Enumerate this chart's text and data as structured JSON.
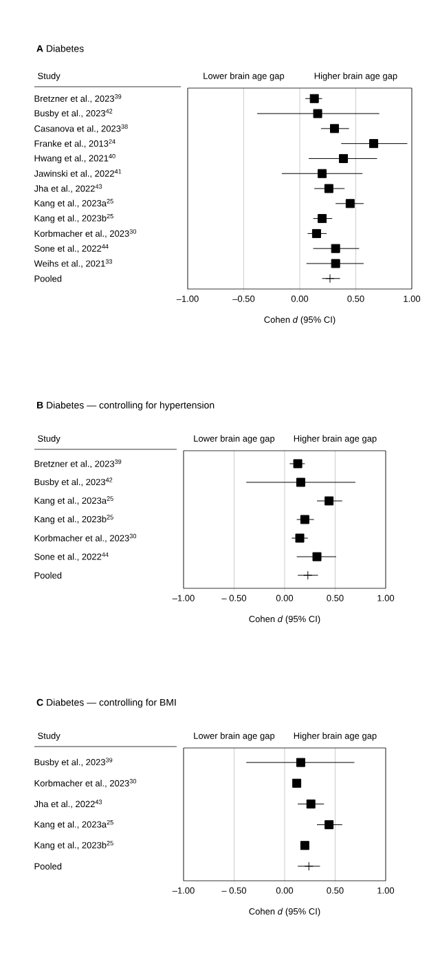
{
  "chart_data": [
    {
      "type": "scatter",
      "orientation": "horizontal",
      "title": "**A**    Diabetes",
      "ylabel": "Study",
      "xlabel": "Cohen *d* (95% CI)",
      "annotations": [
        "Lower brain age gap",
        "Higher brain age gap"
      ],
      "categories": [
        "Bretzner et al., 2023$^{39}$",
        "Busby et al., 2023$^{42}$",
        "Casanova et al., 2023$^{38}$",
        "Franke et al., 2013$^{24}$",
        "Hwang et al., 2021$^{40}$",
        "Jawinski et al., 2022$^{41}$",
        "Jha et al., 2022$^{43}$",
        "Kang et al., 2023a$^{25}$",
        "Kang et al., 2023b$^{25}$",
        "Korbmacher et al., 2023$^{30}$",
        "Sone et al., 2022$^{44}$",
        "Weihs et al., 2021$^{33}$",
        "Pooled"
      ],
      "xlim": [
        -1,
        1
      ],
      "xticks": [
        {
          "value": -1,
          "label": "–1.00"
        },
        {
          "value": -0.5,
          "label": "–0.50"
        },
        {
          "value": 0,
          "label": "0.00"
        },
        {
          "value": 0.5,
          "label": "0.50"
        },
        {
          "value": 1,
          "label": "1.00"
        }
      ],
      "grid": "x",
      "series": [
        {
          "color": "#000000",
          "marker": "square",
          "values": [
            0.13,
            0.16,
            0.31,
            0.66,
            0.39,
            0.2,
            0.26,
            0.45,
            0.2,
            0.15,
            0.32,
            0.32,
            null
          ],
          "errors": [
            [
              0.05,
              0.2
            ],
            [
              -0.38,
              0.71
            ],
            [
              0.19,
              0.44
            ],
            [
              0.37,
              0.96
            ],
            [
              0.08,
              0.69
            ],
            [
              -0.16,
              0.56
            ],
            [
              0.13,
              0.4
            ],
            [
              0.32,
              0.57
            ],
            [
              0.12,
              0.29
            ],
            [
              0.07,
              0.24
            ],
            [
              0.12,
              0.53
            ],
            [
              0.06,
              0.57
            ],
            null
          ]
        },
        {
          "color": "#000000",
          "marker": "cross",
          "values": [
            null,
            null,
            null,
            null,
            null,
            null,
            null,
            null,
            null,
            null,
            null,
            null,
            0.27
          ],
          "errors": [
            null,
            null,
            null,
            null,
            null,
            null,
            null,
            null,
            null,
            null,
            null,
            null,
            [
              0.2,
              0.36
            ]
          ]
        }
      ]
    },
    {
      "type": "scatter",
      "orientation": "horizontal",
      "title": "**B**    Diabetes — controlling for hypertension",
      "ylabel": "Study",
      "xlabel": "Cohen *d* (95% CI)",
      "annotations": [
        "Lower brain age gap",
        "Higher brain age gap"
      ],
      "categories": [
        "Bretzner et al., 2023$^{39}$",
        "Busby et al., 2023$^{42}$",
        "Kang et al., 2023a$^{25}$",
        "Kang et al., 2023b$^{25}$",
        "Korbmacher et al., 2023$^{30}$",
        "Sone et al., 2022$^{44}$",
        "Pooled"
      ],
      "xlim": [
        -1,
        1
      ],
      "xticks": [
        {
          "value": -1,
          "label": "–1.00"
        },
        {
          "value": -0.5,
          "label": "– 0.50"
        },
        {
          "value": 0,
          "label": "0.00"
        },
        {
          "value": 0.5,
          "label": "0.50"
        },
        {
          "value": 1,
          "label": "1.00"
        }
      ],
      "grid": "x",
      "series": [
        {
          "color": "#000000",
          "marker": "square",
          "values": [
            0.13,
            0.16,
            0.44,
            0.2,
            0.15,
            0.32,
            null
          ],
          "errors": [
            [
              0.05,
              0.2
            ],
            [
              -0.38,
              0.7
            ],
            [
              0.32,
              0.57
            ],
            [
              0.12,
              0.29
            ],
            [
              0.07,
              0.23
            ],
            [
              0.12,
              0.51
            ],
            null
          ]
        },
        {
          "color": "#000000",
          "marker": "cross",
          "values": [
            null,
            null,
            null,
            null,
            null,
            null,
            0.23
          ],
          "errors": [
            null,
            null,
            null,
            null,
            null,
            null,
            [
              0.13,
              0.33
            ]
          ]
        }
      ]
    },
    {
      "type": "scatter",
      "orientation": "horizontal",
      "title": "**C**    Diabetes — controlling for BMI",
      "ylabel": "Study",
      "xlabel": "Cohen *d* (95% CI)",
      "annotations": [
        "Lower brain age gap",
        "Higher brain age gap"
      ],
      "categories": [
        "Busby et al., 2023$^{39}$",
        "Korbmacher et al., 2023$^{30}$",
        "Jha et al., 2022$^{43}$",
        "Kang et al., 2023a$^{25}$",
        "Kang et al., 2023b$^{25}$",
        "Pooled"
      ],
      "xlim": [
        -1,
        1
      ],
      "xticks": [
        {
          "value": -1,
          "label": "–1.00"
        },
        {
          "value": -0.5,
          "label": "– 0.50"
        },
        {
          "value": 0,
          "label": "0.00"
        },
        {
          "value": 0.5,
          "label": "0.50"
        },
        {
          "value": 1,
          "label": "1.00"
        }
      ],
      "grid": "x",
      "series": [
        {
          "color": "#000000",
          "marker": "square",
          "values": [
            0.16,
            0.12,
            0.26,
            0.44,
            0.2,
            null
          ],
          "errors": [
            [
              -0.38,
              0.69
            ],
            null,
            [
              0.13,
              0.39
            ],
            [
              0.32,
              0.57
            ],
            null,
            null
          ]
        },
        {
          "color": "#000000",
          "marker": "cross",
          "values": [
            null,
            null,
            null,
            null,
            null,
            0.24
          ],
          "errors": [
            null,
            null,
            null,
            null,
            null,
            [
              0.13,
              0.35
            ]
          ]
        }
      ]
    }
  ]
}
